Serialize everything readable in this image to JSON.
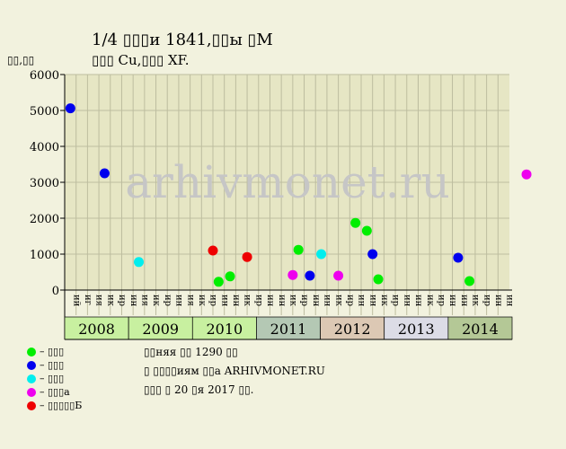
{
  "chart_data": {
    "type": "scatter",
    "title": "1/4 ▯▯▯и 1841,▯▯ы ▯М",
    "subtitle": "▯▯▯ Cu,▯▯▯ XF.",
    "ylabel": "▯▯,▯▯",
    "ylim": [
      0,
      6000
    ],
    "yticks": [
      0,
      1000,
      2000,
      3000,
      4000,
      5000,
      6000
    ],
    "grid": true,
    "watermark": "arhivmonet.ru",
    "quarters": [
      "ий",
      "иг",
      "ия",
      "ик",
      "ир",
      "ин",
      "ия",
      "ик",
      "ир",
      "ин",
      "ия",
      "ик",
      "ир",
      "ин",
      "ин",
      "ик",
      "ир",
      "ин",
      "ин",
      "ик",
      "ир",
      "ин",
      "ин",
      "ик",
      "ир",
      "ин",
      "ин",
      "ик",
      "ир",
      "ин",
      "ин",
      "ик",
      "ир",
      "ин",
      "ин",
      "ик",
      "ир",
      "ин",
      "ин"
    ],
    "years": [
      {
        "label": "2008",
        "color": "#c8f0a0"
      },
      {
        "label": "2009",
        "color": "#c8f0a0"
      },
      {
        "label": "2010",
        "color": "#c8f0a0"
      },
      {
        "label": "2011",
        "color": "#b4c8b4"
      },
      {
        "label": "2012",
        "color": "#dcc8b4"
      },
      {
        "label": "2013",
        "color": "#dcdce6"
      },
      {
        "label": "2014",
        "color": "#b4c896"
      }
    ],
    "series": [
      {
        "name": "– ▯▯▯",
        "color": "#00ee00",
        "points": [
          [
            13.5,
            230
          ],
          [
            14.5,
            380
          ],
          [
            20.5,
            1120
          ],
          [
            25.5,
            1870
          ],
          [
            26.5,
            1650
          ],
          [
            27.5,
            300
          ],
          [
            35.5,
            250
          ]
        ]
      },
      {
        "name": "– ▯▯▯",
        "color": "#0000ee",
        "points": [
          [
            0.5,
            5060
          ],
          [
            3.5,
            3250
          ],
          [
            21.5,
            400
          ],
          [
            27.0,
            1000
          ],
          [
            34.5,
            900
          ]
        ]
      },
      {
        "name": "– ▯▯▯",
        "color": "#00eeee",
        "points": [
          [
            6.5,
            780
          ],
          [
            22.5,
            1000
          ]
        ]
      },
      {
        "name": "– ▯▯▯а",
        "color": "#ee00ee",
        "points": [
          [
            20.0,
            420
          ],
          [
            24.0,
            400
          ],
          [
            40.5,
            3220
          ]
        ]
      },
      {
        "name": "– ▯▯▯▯▯Б",
        "color": "#ee0000",
        "points": [
          [
            13.0,
            1100
          ],
          [
            16.0,
            920
          ]
        ]
      }
    ]
  },
  "notes": [
    "▯▯няя ▯▯ 1290 ▯▯",
    "▯ ▯▯▯▯иям ▯▯а ARHIVMONET.RU",
    "▯▯▯ ▯ 20 ▯я 2017 ▯▯."
  ]
}
